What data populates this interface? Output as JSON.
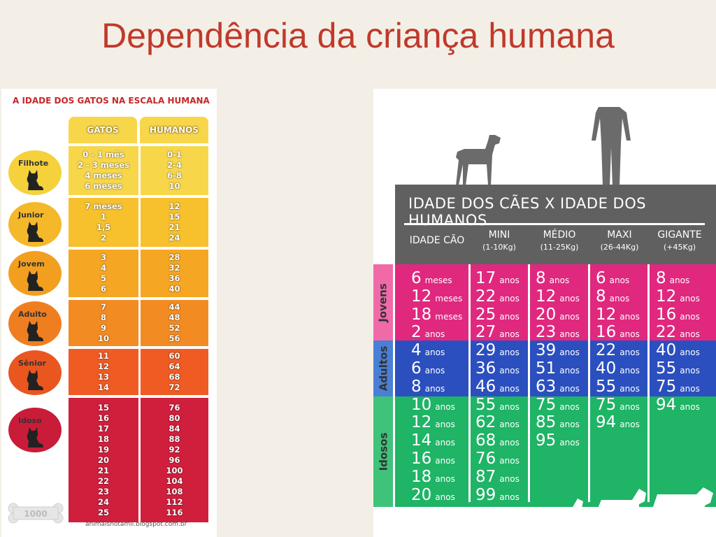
{
  "slide": {
    "title": "Dependência da criança humana"
  },
  "cats": {
    "heading": "A IDADE DOS GATOS NA ESCALA HUMANA",
    "col_gatos": "GATOS",
    "col_humanos": "HUMANOS",
    "stages": [
      {
        "label": "Filhote",
        "color": "#f7d64a",
        "circle": "#f5d23c",
        "gatos": [
          "0 - 1 mês",
          "2 - 3 meses",
          "4 meses",
          "6 meses"
        ],
        "humanos": [
          "0-1",
          "2-4",
          "6-8",
          "10"
        ]
      },
      {
        "label": "Junior",
        "color": "#f6c12d",
        "circle": "#f4b82a",
        "gatos": [
          "7 meses",
          "1",
          "1,5",
          "2"
        ],
        "humanos": [
          "12",
          "15",
          "21",
          "24"
        ]
      },
      {
        "label": "Jovem",
        "color": "#f5a623",
        "circle": "#f29f1f",
        "gatos": [
          "3",
          "4",
          "5",
          "6"
        ],
        "humanos": [
          "28",
          "32",
          "36",
          "40"
        ]
      },
      {
        "label": "Adulto",
        "color": "#f38b23",
        "circle": "#ef7e20",
        "gatos": [
          "7",
          "8",
          "9",
          "10"
        ],
        "humanos": [
          "44",
          "48",
          "52",
          "56"
        ]
      },
      {
        "label": "Sênior",
        "color": "#ef5b23",
        "circle": "#ea5620",
        "gatos": [
          "11",
          "12",
          "13",
          "14"
        ],
        "humanos": [
          "60",
          "64",
          "68",
          "72"
        ]
      },
      {
        "label": "Idoso",
        "color": "#d01f3c",
        "circle": "#c91c39",
        "gatos": [
          "15",
          "16",
          "17",
          "18",
          "19",
          "20",
          "21",
          "22",
          "23",
          "24",
          "25"
        ],
        "humanos": [
          "76",
          "80",
          "84",
          "88",
          "92",
          "96",
          "100",
          "104",
          "108",
          "112",
          "116"
        ]
      }
    ],
    "bone_text": "1000",
    "footer": "animaisnotamil.blogspot.com.br"
  },
  "dogs": {
    "title": "IDADE DOS CÃES X IDADE DOS HUMANOS",
    "columns": [
      {
        "name": "IDADE CÃO",
        "sub": ""
      },
      {
        "name": "MINI",
        "sub": "(1-10Kg)"
      },
      {
        "name": "MÉDIO",
        "sub": "(11-25Kg)"
      },
      {
        "name": "MAXI",
        "sub": "(26-44Kg)"
      },
      {
        "name": "GIGANTE",
        "sub": "(+45Kg)"
      }
    ],
    "groups": [
      {
        "label": "Jovens",
        "color": "#e0287f",
        "tab": "#f06aa8"
      },
      {
        "label": "Adultos",
        "color": "#2b4fbf",
        "tab": "#4a7fd6"
      },
      {
        "label": "Idosos",
        "color": "#1fb466",
        "tab": "#3fc37a"
      }
    ],
    "unit": "anos",
    "unit_months": "meses",
    "rows": [
      {
        "group": 0,
        "age": "6",
        "age_unit": "meses",
        "mini": "17",
        "medio": "8",
        "maxi": "6",
        "gigante": "8"
      },
      {
        "group": 0,
        "age": "12",
        "age_unit": "meses",
        "mini": "22",
        "medio": "12",
        "maxi": "8",
        "gigante": "12"
      },
      {
        "group": 0,
        "age": "18",
        "age_unit": "meses",
        "mini": "25",
        "medio": "20",
        "maxi": "12",
        "gigante": "16"
      },
      {
        "group": 0,
        "age": "2",
        "age_unit": "anos",
        "mini": "27",
        "medio": "23",
        "maxi": "16",
        "gigante": "22"
      },
      {
        "group": 1,
        "age": "4",
        "age_unit": "anos",
        "mini": "29",
        "medio": "39",
        "maxi": "22",
        "gigante": "40"
      },
      {
        "group": 1,
        "age": "6",
        "age_unit": "anos",
        "mini": "36",
        "medio": "51",
        "maxi": "40",
        "gigante": "55"
      },
      {
        "group": 1,
        "age": "8",
        "age_unit": "anos",
        "mini": "46",
        "medio": "63",
        "maxi": "55",
        "gigante": "75"
      },
      {
        "group": 2,
        "age": "10",
        "age_unit": "anos",
        "mini": "55",
        "medio": "75",
        "maxi": "75",
        "gigante": "94"
      },
      {
        "group": 2,
        "age": "12",
        "age_unit": "anos",
        "mini": "62",
        "medio": "85",
        "maxi": "94",
        "gigante": ""
      },
      {
        "group": 2,
        "age": "14",
        "age_unit": "anos",
        "mini": "68",
        "medio": "95",
        "maxi": "",
        "gigante": ""
      },
      {
        "group": 2,
        "age": "16",
        "age_unit": "anos",
        "mini": "76",
        "medio": "",
        "maxi": "",
        "gigante": ""
      },
      {
        "group": 2,
        "age": "18",
        "age_unit": "anos",
        "mini": "87",
        "medio": "",
        "maxi": "",
        "gigante": ""
      },
      {
        "group": 2,
        "age": "20",
        "age_unit": "anos",
        "mini": "99",
        "medio": "",
        "maxi": "",
        "gigante": ""
      }
    ],
    "footer": "animaisnotamil.blogspot.com"
  }
}
